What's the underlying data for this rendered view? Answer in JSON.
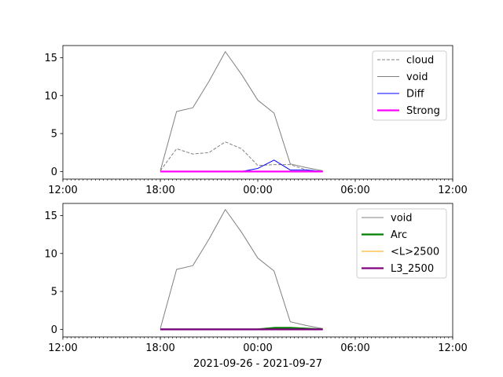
{
  "figure": {
    "xlabel": "2021-09-26 - 2021-09-27"
  },
  "chart_data": [
    {
      "type": "line",
      "panel": "top",
      "xlabel": "",
      "ylabel": "",
      "x_ticks": [
        "12:00",
        "18:00",
        "00:00",
        "06:00",
        "12:00"
      ],
      "x_range": [
        "2021-09-26 12:00",
        "2021-09-27 12:00"
      ],
      "y_ticks": [
        0,
        5,
        10,
        15
      ],
      "ylim": [
        -1,
        16.6
      ],
      "grid": false,
      "legend": "top-right",
      "x": [
        "2021-09-26 18:00",
        "2021-09-26 19:00",
        "2021-09-26 20:00",
        "2021-09-26 21:00",
        "2021-09-26 22:00",
        "2021-09-26 23:00",
        "2021-09-27 00:00",
        "2021-09-27 01:00",
        "2021-09-27 02:00",
        "2021-09-27 03:00",
        "2021-09-27 04:00"
      ],
      "series": [
        {
          "name": "cloud",
          "color": "#808080",
          "style": "dashed",
          "width": 1,
          "values": [
            0.1,
            3.0,
            2.3,
            2.5,
            3.9,
            3.0,
            0.8,
            0.9,
            0.9,
            0.2,
            0.0
          ]
        },
        {
          "name": "void",
          "color": "#808080",
          "style": "solid",
          "width": 1,
          "values": [
            0.1,
            7.9,
            8.4,
            11.9,
            15.8,
            12.8,
            9.4,
            7.7,
            1.0,
            0.5,
            0.1
          ]
        },
        {
          "name": "Diff",
          "color": "#0000ff",
          "style": "solid",
          "width": 1,
          "values": [
            0.0,
            0.0,
            0.0,
            0.0,
            0.0,
            0.0,
            0.4,
            1.5,
            0.2,
            0.2,
            0.0
          ]
        },
        {
          "name": "Strong",
          "color": "#ff00ff",
          "style": "solid",
          "width": 2.2,
          "values": [
            0.0,
            0.0,
            0.0,
            0.0,
            0.0,
            0.0,
            0.0,
            0.0,
            0.0,
            0.0,
            0.0
          ]
        }
      ]
    },
    {
      "type": "line",
      "panel": "bottom",
      "xlabel": "2021-09-26 - 2021-09-27",
      "ylabel": "",
      "x_ticks": [
        "12:00",
        "18:00",
        "00:00",
        "06:00",
        "12:00"
      ],
      "x_range": [
        "2021-09-26 12:00",
        "2021-09-27 12:00"
      ],
      "y_ticks": [
        0,
        5,
        10,
        15
      ],
      "ylim": [
        -1,
        16.6
      ],
      "grid": false,
      "legend": "top-right",
      "x": [
        "2021-09-26 18:00",
        "2021-09-26 19:00",
        "2021-09-26 20:00",
        "2021-09-26 21:00",
        "2021-09-26 22:00",
        "2021-09-26 23:00",
        "2021-09-27 00:00",
        "2021-09-27 01:00",
        "2021-09-27 02:00",
        "2021-09-27 03:00",
        "2021-09-27 04:00"
      ],
      "series": [
        {
          "name": "void",
          "color": "#808080",
          "style": "solid",
          "width": 1,
          "values": [
            0.1,
            7.9,
            8.4,
            11.9,
            15.8,
            12.8,
            9.4,
            7.7,
            1.0,
            0.5,
            0.1
          ]
        },
        {
          "name": "Arc",
          "color": "#008000",
          "style": "solid",
          "width": 2.2,
          "values": [
            0.0,
            0.0,
            0.0,
            0.0,
            0.0,
            0.0,
            0.0,
            0.2,
            0.2,
            0.1,
            0.0
          ]
        },
        {
          "name": "<L>2500",
          "color": "#ffa500",
          "style": "solid",
          "width": 1,
          "values": [
            0.0,
            0.0,
            0.0,
            0.0,
            0.0,
            0.0,
            0.0,
            0.0,
            0.0,
            0.0,
            0.0
          ]
        },
        {
          "name": "L3_2500",
          "color": "#800080",
          "style": "solid",
          "width": 2.2,
          "values": [
            0.0,
            0.0,
            0.0,
            0.0,
            0.0,
            0.0,
            0.0,
            0.0,
            0.0,
            0.0,
            0.0
          ]
        }
      ]
    }
  ]
}
